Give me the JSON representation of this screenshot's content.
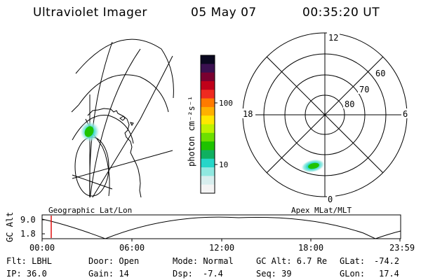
{
  "header": {
    "instrument": "Ultraviolet Imager",
    "date": "05 May 07",
    "time": "00:35:20 UT"
  },
  "colorbar": {
    "label": "photon cm⁻²s⁻¹",
    "ticks": [
      "100",
      "10"
    ],
    "colors": [
      "#0a0820",
      "#3a1050",
      "#7a0030",
      "#c0001a",
      "#ef2a20",
      "#ff7a00",
      "#ffb000",
      "#ffe800",
      "#bff200",
      "#6ddf00",
      "#1ec300",
      "#10b060",
      "#25d6c8",
      "#90e8e0",
      "#d8eeee",
      "#f4f4f4"
    ]
  },
  "polar_plot": {
    "mlt_labels": {
      "top": "12",
      "bottom": "0",
      "left": "18",
      "right": "6"
    },
    "lat_labels": [
      "60",
      "70",
      "80"
    ]
  },
  "timeline": {
    "left_label": "Geographic Lat/Lon",
    "right_label": "Apex MLat/MLT",
    "axis_title": "GC Alt",
    "y_ticks": [
      "9.0",
      "1.8"
    ],
    "x_ticks": [
      "00:00",
      "06:00",
      "12:00",
      "18:00",
      "23:59"
    ]
  },
  "info": {
    "flt": "Flt: LBHL",
    "ip": "IP: 36.0",
    "door": "Door: Open",
    "gain": "Gain: 14",
    "mode": "Mode: Normal",
    "dsp": "Dsp:",
    "dsp_value": "-7.4",
    "gc_alt": "GC Alt: 6.7 Re",
    "seq": "Seq: 39",
    "glat": "GLat:",
    "glat_value": "-74.2",
    "glon": "GLon:",
    "glon_value": "17.4"
  }
}
